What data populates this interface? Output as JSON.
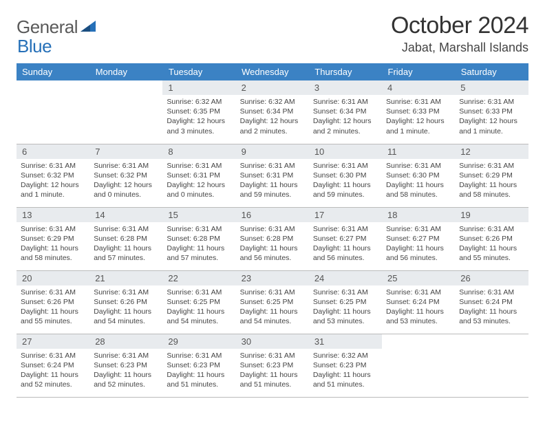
{
  "logo": {
    "general": "General",
    "blue": "Blue",
    "triangle_color": "#2670b8"
  },
  "title": "October 2024",
  "location": "Jabat, Marshall Islands",
  "header_bg": "#3b82c4",
  "daynum_bg": "#e8ebee",
  "day_headers": [
    "Sunday",
    "Monday",
    "Tuesday",
    "Wednesday",
    "Thursday",
    "Friday",
    "Saturday"
  ],
  "weeks": [
    [
      {
        "n": "",
        "sr": "",
        "ss": "",
        "dl": ""
      },
      {
        "n": "",
        "sr": "",
        "ss": "",
        "dl": ""
      },
      {
        "n": "1",
        "sr": "6:32 AM",
        "ss": "6:35 PM",
        "dl": "12 hours and 3 minutes."
      },
      {
        "n": "2",
        "sr": "6:32 AM",
        "ss": "6:34 PM",
        "dl": "12 hours and 2 minutes."
      },
      {
        "n": "3",
        "sr": "6:31 AM",
        "ss": "6:34 PM",
        "dl": "12 hours and 2 minutes."
      },
      {
        "n": "4",
        "sr": "6:31 AM",
        "ss": "6:33 PM",
        "dl": "12 hours and 1 minute."
      },
      {
        "n": "5",
        "sr": "6:31 AM",
        "ss": "6:33 PM",
        "dl": "12 hours and 1 minute."
      }
    ],
    [
      {
        "n": "6",
        "sr": "6:31 AM",
        "ss": "6:32 PM",
        "dl": "12 hours and 1 minute."
      },
      {
        "n": "7",
        "sr": "6:31 AM",
        "ss": "6:32 PM",
        "dl": "12 hours and 0 minutes."
      },
      {
        "n": "8",
        "sr": "6:31 AM",
        "ss": "6:31 PM",
        "dl": "12 hours and 0 minutes."
      },
      {
        "n": "9",
        "sr": "6:31 AM",
        "ss": "6:31 PM",
        "dl": "11 hours and 59 minutes."
      },
      {
        "n": "10",
        "sr": "6:31 AM",
        "ss": "6:30 PM",
        "dl": "11 hours and 59 minutes."
      },
      {
        "n": "11",
        "sr": "6:31 AM",
        "ss": "6:30 PM",
        "dl": "11 hours and 58 minutes."
      },
      {
        "n": "12",
        "sr": "6:31 AM",
        "ss": "6:29 PM",
        "dl": "11 hours and 58 minutes."
      }
    ],
    [
      {
        "n": "13",
        "sr": "6:31 AM",
        "ss": "6:29 PM",
        "dl": "11 hours and 58 minutes."
      },
      {
        "n": "14",
        "sr": "6:31 AM",
        "ss": "6:28 PM",
        "dl": "11 hours and 57 minutes."
      },
      {
        "n": "15",
        "sr": "6:31 AM",
        "ss": "6:28 PM",
        "dl": "11 hours and 57 minutes."
      },
      {
        "n": "16",
        "sr": "6:31 AM",
        "ss": "6:28 PM",
        "dl": "11 hours and 56 minutes."
      },
      {
        "n": "17",
        "sr": "6:31 AM",
        "ss": "6:27 PM",
        "dl": "11 hours and 56 minutes."
      },
      {
        "n": "18",
        "sr": "6:31 AM",
        "ss": "6:27 PM",
        "dl": "11 hours and 56 minutes."
      },
      {
        "n": "19",
        "sr": "6:31 AM",
        "ss": "6:26 PM",
        "dl": "11 hours and 55 minutes."
      }
    ],
    [
      {
        "n": "20",
        "sr": "6:31 AM",
        "ss": "6:26 PM",
        "dl": "11 hours and 55 minutes."
      },
      {
        "n": "21",
        "sr": "6:31 AM",
        "ss": "6:26 PM",
        "dl": "11 hours and 54 minutes."
      },
      {
        "n": "22",
        "sr": "6:31 AM",
        "ss": "6:25 PM",
        "dl": "11 hours and 54 minutes."
      },
      {
        "n": "23",
        "sr": "6:31 AM",
        "ss": "6:25 PM",
        "dl": "11 hours and 54 minutes."
      },
      {
        "n": "24",
        "sr": "6:31 AM",
        "ss": "6:25 PM",
        "dl": "11 hours and 53 minutes."
      },
      {
        "n": "25",
        "sr": "6:31 AM",
        "ss": "6:24 PM",
        "dl": "11 hours and 53 minutes."
      },
      {
        "n": "26",
        "sr": "6:31 AM",
        "ss": "6:24 PM",
        "dl": "11 hours and 53 minutes."
      }
    ],
    [
      {
        "n": "27",
        "sr": "6:31 AM",
        "ss": "6:24 PM",
        "dl": "11 hours and 52 minutes."
      },
      {
        "n": "28",
        "sr": "6:31 AM",
        "ss": "6:23 PM",
        "dl": "11 hours and 52 minutes."
      },
      {
        "n": "29",
        "sr": "6:31 AM",
        "ss": "6:23 PM",
        "dl": "11 hours and 51 minutes."
      },
      {
        "n": "30",
        "sr": "6:31 AM",
        "ss": "6:23 PM",
        "dl": "11 hours and 51 minutes."
      },
      {
        "n": "31",
        "sr": "6:32 AM",
        "ss": "6:23 PM",
        "dl": "11 hours and 51 minutes."
      },
      {
        "n": "",
        "sr": "",
        "ss": "",
        "dl": ""
      },
      {
        "n": "",
        "sr": "",
        "ss": "",
        "dl": ""
      }
    ]
  ]
}
